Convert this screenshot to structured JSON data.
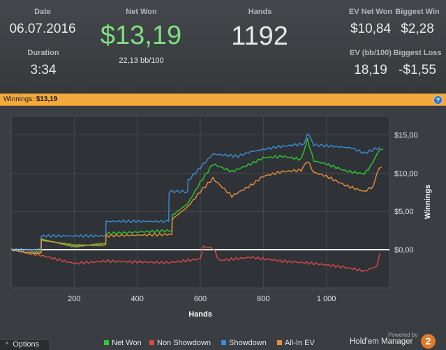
{
  "stats": {
    "date_label": "Date",
    "date_value": "06.07.2016",
    "duration_label": "Duration",
    "duration_value": "3:34",
    "net_won_label": "Net Won",
    "net_won_value": "$13,19",
    "bb_per_100": "22,13 bb/100",
    "hands_label": "Hands",
    "hands_value": "1192",
    "ev_net_won_label": "EV Net Won",
    "ev_net_won_value": "$10,84",
    "biggest_win_label": "Biggest Win",
    "biggest_win_value": "$2,28",
    "ev_bb_label": "EV (bb/100)",
    "ev_bb_value": "18,19",
    "biggest_loss_label": "Biggest Loss",
    "biggest_loss_value": "-$1,55"
  },
  "winnings_bar": {
    "label": "Winnings:",
    "value": "$13,19",
    "help_icon": "?"
  },
  "footer": {
    "options_label": "Options",
    "options_icon": "^",
    "powered_by": "Powered by",
    "brand": "Hold'em Manager",
    "brand_badge": "2"
  },
  "colors": {
    "net_won": "#2ecc2e",
    "non_showdown": "#d94a4a",
    "showdown": "#3b8fd9",
    "allin_ev": "#e8913a",
    "net_won_value_text": "#7fe07f"
  },
  "chart_data": {
    "type": "line",
    "xlabel": "Hands",
    "ylabel": "Winnings",
    "xlim": [
      0,
      1200
    ],
    "ylim": [
      -5,
      17.5
    ],
    "x_ticks": [
      200,
      400,
      600,
      800,
      1000
    ],
    "x_tick_labels": [
      "200",
      "400",
      "600",
      "800",
      "1 000"
    ],
    "y_ticks": [
      0,
      5,
      10,
      15
    ],
    "y_tick_labels": [
      "$0,00",
      "$5,00",
      "$10,00",
      "$15,00"
    ],
    "grid": true,
    "legend_position": "bottom",
    "series": [
      {
        "name": "Net Won",
        "color": "#2ecc2e",
        "points": [
          [
            0,
            0
          ],
          [
            50,
            -0.4
          ],
          [
            95,
            -0.4
          ],
          [
            96,
            1.3
          ],
          [
            200,
            0.5
          ],
          [
            300,
            0.7
          ],
          [
            301,
            2.1
          ],
          [
            400,
            2.3
          ],
          [
            510,
            2.5
          ],
          [
            511,
            4.5
          ],
          [
            560,
            6.0
          ],
          [
            600,
            8.8
          ],
          [
            640,
            11.2
          ],
          [
            700,
            10.2
          ],
          [
            760,
            11.2
          ],
          [
            800,
            12.0
          ],
          [
            860,
            12.2
          ],
          [
            920,
            11.8
          ],
          [
            940,
            14.4
          ],
          [
            960,
            11.6
          ],
          [
            1000,
            11.2
          ],
          [
            1060,
            10.3
          ],
          [
            1120,
            9.9
          ],
          [
            1140,
            10.9
          ],
          [
            1170,
            13.2
          ],
          [
            1180,
            13.1
          ]
        ]
      },
      {
        "name": "Non Showdown",
        "color": "#d94a4a",
        "points": [
          [
            0,
            0
          ],
          [
            100,
            -0.8
          ],
          [
            200,
            -1.8
          ],
          [
            300,
            -1.5
          ],
          [
            400,
            -1.6
          ],
          [
            500,
            -1.7
          ],
          [
            600,
            -1.2
          ],
          [
            610,
            0.4
          ],
          [
            640,
            0.2
          ],
          [
            660,
            -1.4
          ],
          [
            760,
            -1.0
          ],
          [
            860,
            -1.5
          ],
          [
            960,
            -1.8
          ],
          [
            1060,
            -2.3
          ],
          [
            1120,
            -2.8
          ],
          [
            1160,
            -2.2
          ],
          [
            1170,
            -0.4
          ]
        ]
      },
      {
        "name": "Showdown",
        "color": "#3b8fd9",
        "points": [
          [
            0,
            0
          ],
          [
            94,
            0
          ],
          [
            95,
            1.8
          ],
          [
            300,
            1.8
          ],
          [
            301,
            3.7
          ],
          [
            500,
            3.7
          ],
          [
            501,
            7.6
          ],
          [
            560,
            7.6
          ],
          [
            561,
            9.0
          ],
          [
            640,
            12.5
          ],
          [
            720,
            12.2
          ],
          [
            760,
            12.8
          ],
          [
            840,
            13.4
          ],
          [
            900,
            13.7
          ],
          [
            930,
            13.8
          ],
          [
            940,
            15.3
          ],
          [
            960,
            13.7
          ],
          [
            1080,
            13.3
          ],
          [
            1120,
            12.6
          ],
          [
            1170,
            13.4
          ]
        ]
      },
      {
        "name": "All-In EV",
        "color": "#e8913a",
        "points": [
          [
            0,
            0
          ],
          [
            50,
            -0.4
          ],
          [
            95,
            -0.4
          ],
          [
            96,
            1.3
          ],
          [
            200,
            0.5
          ],
          [
            300,
            0.7
          ],
          [
            301,
            1.8
          ],
          [
            400,
            1.9
          ],
          [
            510,
            2.0
          ],
          [
            511,
            4.0
          ],
          [
            560,
            5.6
          ],
          [
            600,
            7.6
          ],
          [
            640,
            9.3
          ],
          [
            700,
            7.0
          ],
          [
            760,
            8.4
          ],
          [
            800,
            9.6
          ],
          [
            860,
            10.2
          ],
          [
            920,
            10.4
          ],
          [
            940,
            11.6
          ],
          [
            960,
            10.1
          ],
          [
            1000,
            9.6
          ],
          [
            1060,
            8.4
          ],
          [
            1120,
            7.6
          ],
          [
            1150,
            8.3
          ],
          [
            1160,
            10.1
          ],
          [
            1175,
            10.8
          ]
        ]
      }
    ]
  }
}
